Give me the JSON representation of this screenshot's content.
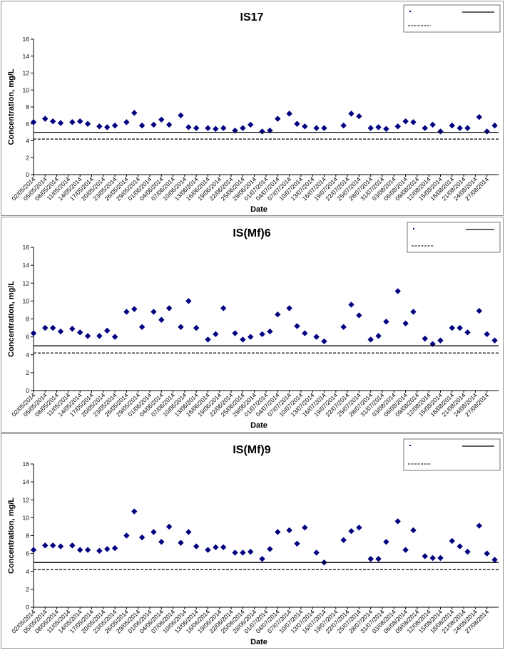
{
  "chart_data": [
    {
      "type": "scatter",
      "title": "IS17",
      "xlabel": "Date",
      "ylabel": "Concentration, mg/L",
      "ylim": [
        0,
        16
      ],
      "y_ticks": [
        "0",
        "2",
        "4",
        "6",
        "8",
        "10",
        "12",
        "14",
        "16"
      ],
      "xlim": [
        "2014-05-02",
        "2014-08-30"
      ],
      "x_ticks": [
        "02/05/2014",
        "05/05/2014",
        "08/05/2014",
        "11/05/2014",
        "14/05/2014",
        "17/05/2014",
        "20/05/2014",
        "23/05/2014",
        "26/05/2014",
        "29/05/2014",
        "01/06/2014",
        "04/06/2014",
        "07/06/2014",
        "10/06/2014",
        "13/06/2014",
        "16/06/2014",
        "19/06/2014",
        "22/06/2014",
        "25/06/2014",
        "28/06/2014",
        "01/07/2014",
        "04/07/2014",
        "07/07/2014",
        "10/07/2014",
        "13/07/2014",
        "16/07/2014",
        "19/07/2014",
        "22/07/2014",
        "25/07/2014",
        "28/07/2014",
        "31/07/2014",
        "03/08/2014",
        "06/08/2014",
        "09/08/2014",
        "12/08/2014",
        "15/08/2014",
        "18/08/2014",
        "21/08/2014",
        "24/08/2014",
        "27/08/2014"
      ],
      "grid": false,
      "legend": "top-right",
      "series": [
        {
          "kind": "points",
          "color": "#00007f",
          "marker": "diamond",
          "x": [
            "2014-05-02",
            "2014-05-05",
            "2014-05-07",
            "2014-05-09",
            "2014-05-12",
            "2014-05-14",
            "2014-05-16",
            "2014-05-19",
            "2014-05-21",
            "2014-05-23",
            "2014-05-26",
            "2014-05-28",
            "2014-05-30",
            "2014-06-02",
            "2014-06-04",
            "2014-06-06",
            "2014-06-09",
            "2014-06-11",
            "2014-06-13",
            "2014-06-16",
            "2014-06-18",
            "2014-06-20",
            "2014-06-23",
            "2014-06-25",
            "2014-06-27",
            "2014-06-30",
            "2014-07-02",
            "2014-07-04",
            "2014-07-07",
            "2014-07-09",
            "2014-07-11",
            "2014-07-14",
            "2014-07-16",
            "2014-07-21",
            "2014-07-23",
            "2014-07-25",
            "2014-07-28",
            "2014-07-30",
            "2014-08-01",
            "2014-08-04",
            "2014-08-06",
            "2014-08-08",
            "2014-08-11",
            "2014-08-13",
            "2014-08-15",
            "2014-08-18",
            "2014-08-20",
            "2014-08-22",
            "2014-08-25",
            "2014-08-27",
            "2014-08-29"
          ],
          "y": [
            6.2,
            6.6,
            6.3,
            6.1,
            6.2,
            6.3,
            6.0,
            5.7,
            5.6,
            5.8,
            6.2,
            7.3,
            5.8,
            5.9,
            6.5,
            5.9,
            7.0,
            5.6,
            5.5,
            5.5,
            5.4,
            5.5,
            5.2,
            5.5,
            5.9,
            5.1,
            5.2,
            6.6,
            7.2,
            6.0,
            5.7,
            5.5,
            5.5,
            5.8,
            7.2,
            6.9,
            5.5,
            5.6,
            5.4,
            5.7,
            6.3,
            6.2,
            5.5,
            5.9,
            5.1,
            5.8,
            5.5,
            5.5,
            6.8,
            5.1,
            5.8
          ]
        },
        {
          "kind": "hline",
          "y": 5.0,
          "style": "solid",
          "color": "#000000"
        },
        {
          "kind": "hline",
          "y": 4.2,
          "style": "dashed",
          "color": "#000000"
        }
      ]
    },
    {
      "type": "scatter",
      "title": "IS(Mf)6",
      "xlabel": "Date",
      "ylabel": "Concentration, mg/L",
      "ylim": [
        0,
        16
      ],
      "y_ticks": [
        "0",
        "2",
        "4",
        "6",
        "8",
        "10",
        "12",
        "14",
        "16"
      ],
      "xlim": [
        "2014-05-02",
        "2014-08-30"
      ],
      "x_ticks": [
        "02/05/2014",
        "05/05/2014",
        "08/05/2014",
        "11/05/2014",
        "14/05/2014",
        "17/05/2014",
        "20/05/2014",
        "23/05/2014",
        "26/05/2014",
        "29/05/2014",
        "01/06/2014",
        "04/06/2014",
        "07/06/2014",
        "10/06/2014",
        "13/06/2014",
        "16/06/2014",
        "19/06/2014",
        "22/06/2014",
        "25/06/2014",
        "28/06/2014",
        "01/07/2014",
        "04/07/2014",
        "07/07/2014",
        "10/07/2014",
        "13/07/2014",
        "16/07/2014",
        "19/07/2014",
        "22/07/2014",
        "25/07/2014",
        "28/07/2014",
        "31/07/2014",
        "03/08/2014",
        "06/08/2014",
        "09/08/2014",
        "12/08/2014",
        "15/08/2014",
        "18/08/2014",
        "21/08/2014",
        "24/08/2014",
        "27/08/2014"
      ],
      "grid": false,
      "legend": "top-right",
      "series": [
        {
          "kind": "points",
          "color": "#00007f",
          "marker": "diamond",
          "x": [
            "2014-05-02",
            "2014-05-05",
            "2014-05-07",
            "2014-05-09",
            "2014-05-12",
            "2014-05-14",
            "2014-05-16",
            "2014-05-19",
            "2014-05-21",
            "2014-05-23",
            "2014-05-26",
            "2014-05-28",
            "2014-05-30",
            "2014-06-02",
            "2014-06-04",
            "2014-06-06",
            "2014-06-09",
            "2014-06-11",
            "2014-06-13",
            "2014-06-16",
            "2014-06-18",
            "2014-06-20",
            "2014-06-23",
            "2014-06-25",
            "2014-06-27",
            "2014-06-30",
            "2014-07-02",
            "2014-07-04",
            "2014-07-07",
            "2014-07-09",
            "2014-07-11",
            "2014-07-14",
            "2014-07-16",
            "2014-07-21",
            "2014-07-23",
            "2014-07-25",
            "2014-07-28",
            "2014-07-30",
            "2014-08-01",
            "2014-08-04",
            "2014-08-06",
            "2014-08-08",
            "2014-08-11",
            "2014-08-13",
            "2014-08-15",
            "2014-08-18",
            "2014-08-20",
            "2014-08-22",
            "2014-08-25",
            "2014-08-27",
            "2014-08-29"
          ],
          "y": [
            6.4,
            7.0,
            7.0,
            6.6,
            6.9,
            6.5,
            6.1,
            6.1,
            6.7,
            6.0,
            8.8,
            9.1,
            7.1,
            8.8,
            7.9,
            9.2,
            7.1,
            10.0,
            7.0,
            5.7,
            6.3,
            9.2,
            6.4,
            5.7,
            6.0,
            6.3,
            6.6,
            8.5,
            9.2,
            7.2,
            6.4,
            6.0,
            5.5,
            7.1,
            9.6,
            8.4,
            5.7,
            6.1,
            7.7,
            11.1,
            7.5,
            8.8,
            5.8,
            5.2,
            5.6,
            7.0,
            7.0,
            6.5,
            8.9,
            6.3,
            5.6
          ]
        },
        {
          "kind": "hline",
          "y": 5.0,
          "style": "solid",
          "color": "#000000"
        },
        {
          "kind": "hline",
          "y": 4.2,
          "style": "dashed",
          "color": "#000000"
        }
      ]
    },
    {
      "type": "scatter",
      "title": "IS(Mf)9",
      "xlabel": "Date",
      "ylabel": "Concentration, mg/L",
      "ylim": [
        0,
        16
      ],
      "y_ticks": [
        "0",
        "2",
        "4",
        "6",
        "8",
        "10",
        "12",
        "14",
        "16"
      ],
      "xlim": [
        "2014-05-02",
        "2014-08-30"
      ],
      "x_ticks": [
        "02/05/2014",
        "05/05/2014",
        "08/05/2014",
        "11/05/2014",
        "14/05/2014",
        "17/05/2014",
        "20/05/2014",
        "23/05/2014",
        "26/05/2014",
        "29/05/2014",
        "01/06/2014",
        "04/06/2014",
        "07/06/2014",
        "10/06/2014",
        "13/06/2014",
        "16/06/2014",
        "19/06/2014",
        "22/06/2014",
        "25/06/2014",
        "28/06/2014",
        "01/07/2014",
        "04/07/2014",
        "07/07/2014",
        "10/07/2014",
        "13/07/2014",
        "16/07/2014",
        "19/07/2014",
        "22/07/2014",
        "25/07/2014",
        "28/07/2014",
        "31/07/2014",
        "03/08/2014",
        "06/08/2014",
        "09/08/2014",
        "12/08/2014",
        "15/08/2014",
        "18/08/2014",
        "21/08/2014",
        "24/08/2014",
        "27/08/2014"
      ],
      "grid": false,
      "legend": "top-right",
      "series": [
        {
          "kind": "points",
          "color": "#00007f",
          "marker": "diamond",
          "x": [
            "2014-05-02",
            "2014-05-05",
            "2014-05-07",
            "2014-05-09",
            "2014-05-12",
            "2014-05-14",
            "2014-05-16",
            "2014-05-19",
            "2014-05-21",
            "2014-05-23",
            "2014-05-26",
            "2014-05-28",
            "2014-05-30",
            "2014-06-02",
            "2014-06-04",
            "2014-06-06",
            "2014-06-09",
            "2014-06-11",
            "2014-06-13",
            "2014-06-16",
            "2014-06-18",
            "2014-06-20",
            "2014-06-23",
            "2014-06-25",
            "2014-06-27",
            "2014-06-30",
            "2014-07-02",
            "2014-07-04",
            "2014-07-07",
            "2014-07-09",
            "2014-07-11",
            "2014-07-14",
            "2014-07-16",
            "2014-07-21",
            "2014-07-23",
            "2014-07-25",
            "2014-07-28",
            "2014-07-30",
            "2014-08-01",
            "2014-08-04",
            "2014-08-06",
            "2014-08-08",
            "2014-08-11",
            "2014-08-13",
            "2014-08-15",
            "2014-08-18",
            "2014-08-20",
            "2014-08-22",
            "2014-08-25",
            "2014-08-27",
            "2014-08-29"
          ],
          "y": [
            6.4,
            6.9,
            6.9,
            6.8,
            6.9,
            6.4,
            6.4,
            6.3,
            6.5,
            6.6,
            8.0,
            10.7,
            7.8,
            8.4,
            7.3,
            9.0,
            7.2,
            8.4,
            6.8,
            6.4,
            6.7,
            6.7,
            6.1,
            6.1,
            6.2,
            5.4,
            6.5,
            8.4,
            8.6,
            7.1,
            8.9,
            6.1,
            5.0,
            7.5,
            8.5,
            8.9,
            5.4,
            5.4,
            7.3,
            9.6,
            6.4,
            8.6,
            5.7,
            5.5,
            5.5,
            7.4,
            6.8,
            6.2,
            9.1,
            6.0,
            5.3
          ]
        },
        {
          "kind": "hline",
          "y": 5.0,
          "style": "solid",
          "color": "#000000"
        },
        {
          "kind": "hline",
          "y": 4.2,
          "style": "dashed",
          "color": "#000000"
        }
      ]
    }
  ]
}
